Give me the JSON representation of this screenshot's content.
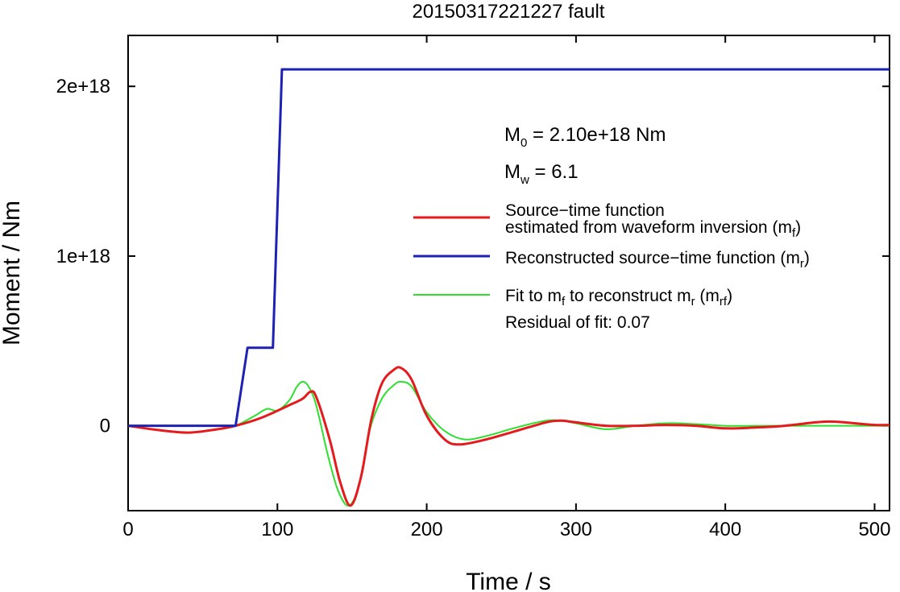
{
  "chart_data": {
    "type": "line",
    "title": "20150317221227 fault",
    "xlabel": "Time / s",
    "ylabel": "Moment / Nm",
    "xlim": [
      0,
      510
    ],
    "ylim": [
      -5e+17,
      2.3e+18
    ],
    "x_ticks": [
      0,
      100,
      200,
      300,
      400,
      500
    ],
    "x_tick_labels": [
      "0",
      "100",
      "200",
      "300",
      "400",
      "500"
    ],
    "y_ticks": [
      0,
      1e+18,
      2e+18
    ],
    "y_tick_labels": [
      "0",
      "1e+18",
      "2e+18"
    ],
    "grid": false,
    "legend_position": "right",
    "annotations": {
      "m0_label": "M",
      "m0_sub": "0",
      "m0_value": " = 2.10e+18 Nm",
      "mw_label": "M",
      "mw_sub": "w",
      "mw_value": " = 6.1",
      "residual": "Residual of fit: 0.07"
    },
    "legend": [
      {
        "lines": [
          "Source−time function",
          "estimated from waveform inversion (m",
          "f",
          ")"
        ],
        "color": "#e41a1c"
      },
      {
        "text": "Reconstructed source−time function (m",
        "sub": "r",
        "end": ")",
        "color": "#1d22b5"
      },
      {
        "text_a": "Fit to m",
        "sub_a": "f",
        "text_b": " to reconstruct m",
        "sub_b": "r",
        "text_c": " (m",
        "sub_c": "rf",
        "text_d": ")",
        "color": "#2ee02e"
      }
    ],
    "series": [
      {
        "color": "#e41a1c",
        "x": [
          0,
          20,
          40,
          60,
          72,
          90,
          110,
          117,
          122,
          126,
          135,
          142,
          149,
          156,
          163,
          170,
          178,
          183,
          190,
          200,
          212,
          222,
          240,
          260,
          280,
          290,
          300,
          320,
          340,
          360,
          380,
          400,
          420,
          440,
          460,
          470,
          480,
          500,
          510
        ],
        "y": [
          0,
          -2.5e+16,
          -4e+16,
          -2e+16,
          0,
          5e+16,
          1.3e+17,
          1.6e+17,
          2e+17,
          1.7e+17,
          -8e+16,
          -3.3e+17,
          -4.7e+17,
          -3e+17,
          4e+16,
          2.5e+17,
          3.3e+17,
          3.4e+17,
          2.7e+17,
          6e+16,
          -8e+16,
          -1.1e+17,
          -8e+16,
          -3e+16,
          2e+16,
          3e+16,
          2e+16,
          0,
          0,
          5000000000000000.0,
          0,
          -1.5e+16,
          -1e+16,
          0,
          2e+16,
          2.5e+16,
          2e+16,
          5000000000000000.0,
          5000000000000000.0
        ]
      },
      {
        "color": "#1d22b5",
        "x": [
          0,
          72,
          80,
          97,
          103,
          510
        ],
        "y": [
          0,
          0,
          4.6e+17,
          4.6e+17,
          2.1e+18,
          2.1e+18
        ]
      },
      {
        "color": "#2ee02e",
        "x": [
          0,
          20,
          40,
          60,
          72,
          85,
          93,
          100,
          108,
          113,
          117,
          121,
          126,
          134,
          141,
          148,
          155,
          162,
          170,
          178,
          183,
          190,
          200,
          212,
          225,
          240,
          260,
          280,
          290,
          300,
          320,
          340,
          360,
          380,
          400,
          420,
          440,
          460,
          480,
          510
        ],
        "y": [
          0,
          -2.5e+16,
          -4e+16,
          -2e+16,
          0,
          6e+16,
          1e+17,
          9e+16,
          1.5e+17,
          2.3e+17,
          2.6e+17,
          2.3e+17,
          1.2e+17,
          -1.8e+17,
          -3.9e+17,
          -4.7e+17,
          -3.4e+17,
          -2e+16,
          1.6e+17,
          2.4e+17,
          2.6e+17,
          2.3e+17,
          8e+16,
          -3e+16,
          -8e+16,
          -6e+16,
          -1e+16,
          3e+16,
          3e+16,
          1.5e+16,
          -2e+16,
          0,
          1.5e+16,
          1e+16,
          0,
          0,
          0,
          0,
          0,
          0
        ]
      }
    ]
  }
}
